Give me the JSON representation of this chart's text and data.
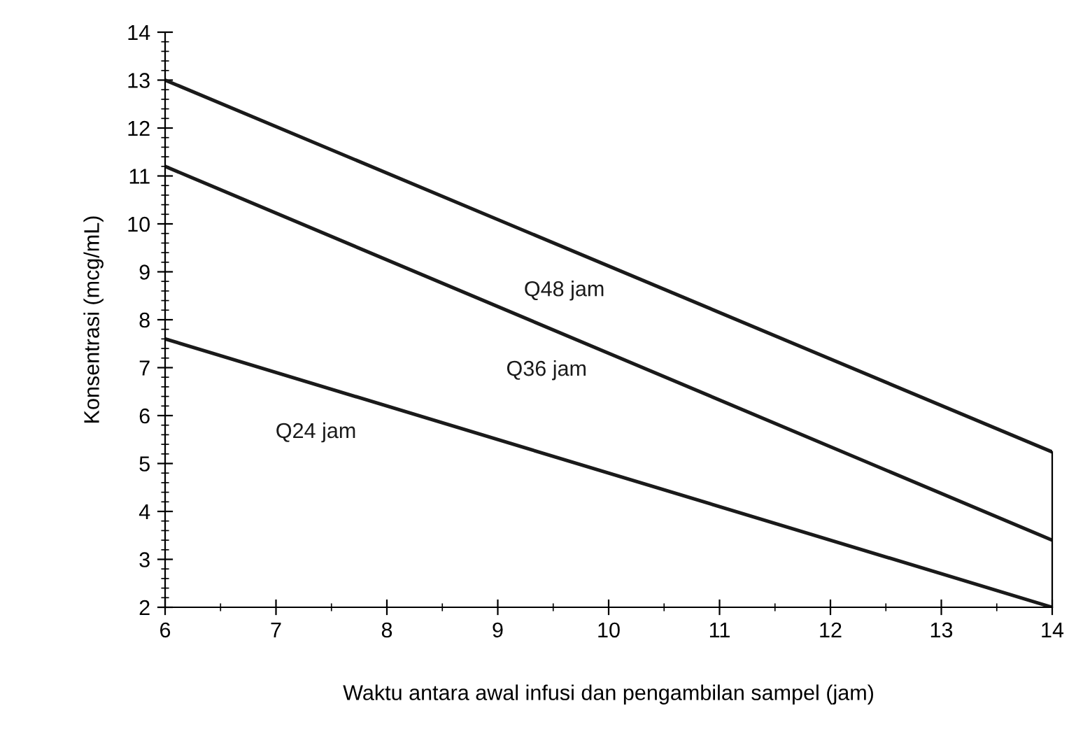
{
  "chart_data": {
    "type": "line",
    "xlabel": "Waktu antara awal infusi dan pengambilan sampel (jam)",
    "ylabel": "Konsentrasi (mcg/mL)",
    "x": [
      6,
      14
    ],
    "series": [
      {
        "name": "Q48 jam",
        "color": "#1a1a1a",
        "values": [
          13.0,
          5.24
        ]
      },
      {
        "name": "Q36 jam",
        "color": "#1a1a1a",
        "values": [
          11.2,
          3.4
        ]
      },
      {
        "name": "Q24 jam",
        "color": "#1a1a1a",
        "values": [
          7.6,
          2.0
        ]
      }
    ],
    "xlim": [
      6,
      14
    ],
    "ylim": [
      2,
      14
    ],
    "xticks": [
      6,
      7,
      8,
      9,
      10,
      11,
      12,
      13,
      14
    ],
    "yticks": [
      2,
      3,
      4,
      5,
      6,
      7,
      8,
      9,
      10,
      11,
      12,
      13,
      14
    ],
    "grid": false,
    "legend": false,
    "marker": "none",
    "line_style": "solid"
  }
}
